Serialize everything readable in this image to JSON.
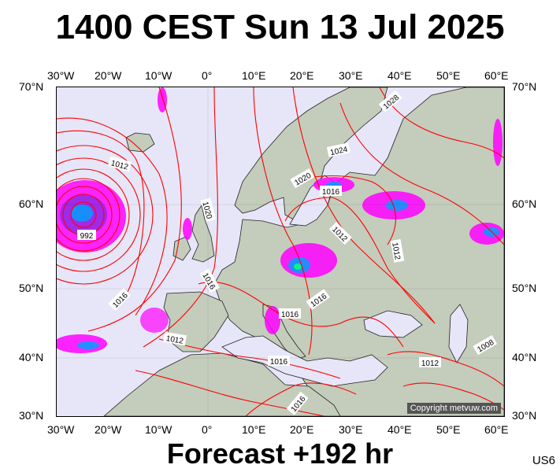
{
  "title": "1400 CEST Sun 13 Jul 2025",
  "footer": "Forecast +192 hr",
  "code": "US6",
  "copyright": "Copyright metvuw.com",
  "lon_labels": [
    "30°W",
    "20°W",
    "10°W",
    "0°",
    "10°E",
    "20°E",
    "30°E",
    "40°E",
    "50°E",
    "60°E"
  ],
  "lat_labels": [
    "70°N",
    "60°N",
    "50°N",
    "40°N",
    "30°N"
  ],
  "isobar_labels": {
    "l1028": "1028",
    "l1024": "1024",
    "l1020a": "1020",
    "l1020b": "1020",
    "l1016a": "1016",
    "l1016b": "1016",
    "l1016c": "1016",
    "l1016d": "1016",
    "l1016e": "1016",
    "l1016f": "1016",
    "l1016g": "1016",
    "l1012a": "1012",
    "l1012b": "1012",
    "l1012c": "1012",
    "l1012d": "1012",
    "l1012e": "1012",
    "l1008": "1008",
    "l992": "992"
  },
  "colors": {
    "isobar": "#ff0000",
    "sea": "#e6e6f8",
    "land": "#c4ccbc",
    "rain_light": "#ff00ff",
    "rain_mid": "#8a2be2",
    "rain_heavy": "#00a0ff",
    "rain_extreme": "#00ff80"
  }
}
